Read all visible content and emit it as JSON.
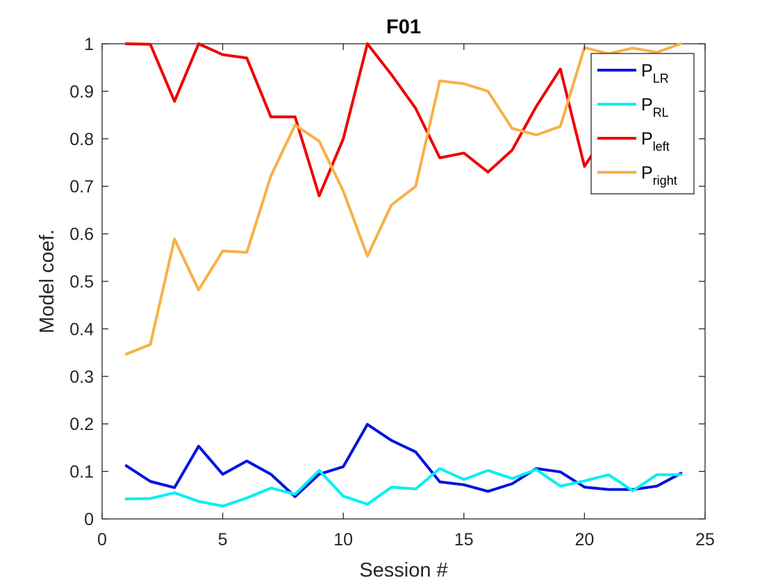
{
  "chart_data": {
    "type": "line",
    "title": "F01",
    "xlabel": "Session #",
    "ylabel": "Model coef.",
    "xlim": [
      0,
      25
    ],
    "ylim": [
      0,
      1
    ],
    "xticks": [
      0,
      5,
      10,
      15,
      20,
      25
    ],
    "yticks": [
      0,
      0.1,
      0.2,
      0.3,
      0.4,
      0.5,
      0.6,
      0.7,
      0.8,
      0.9,
      1
    ],
    "grid": false,
    "legend_position": "top-right",
    "x": [
      1,
      2,
      3,
      4,
      5,
      6,
      7,
      8,
      9,
      10,
      11,
      12,
      13,
      14,
      15,
      16,
      17,
      18,
      19,
      20,
      21,
      22,
      23,
      24
    ],
    "series": [
      {
        "name": "P",
        "subscript": "LR",
        "color": "#0014dc",
        "values": [
          0.112,
          0.079,
          0.066,
          0.153,
          0.094,
          0.122,
          0.094,
          0.047,
          0.094,
          0.11,
          0.199,
          0.165,
          0.141,
          0.078,
          0.072,
          0.058,
          0.074,
          0.106,
          0.099,
          0.067,
          0.062,
          0.062,
          0.069,
          0.096
        ]
      },
      {
        "name": "P",
        "subscript": "RL",
        "color": "#00f0f0",
        "values": [
          0.042,
          0.043,
          0.055,
          0.037,
          0.027,
          0.044,
          0.065,
          0.052,
          0.102,
          0.048,
          0.031,
          0.067,
          0.063,
          0.106,
          0.083,
          0.102,
          0.085,
          0.104,
          0.069,
          0.08,
          0.093,
          0.059,
          0.093,
          0.093
        ]
      },
      {
        "name": "P",
        "subscript": "left",
        "color": "#f00000",
        "values": [
          1.0,
          0.999,
          0.879,
          1.0,
          0.977,
          0.97,
          0.846,
          0.846,
          0.68,
          0.8,
          1.0,
          0.935,
          0.864,
          0.76,
          0.77,
          0.73,
          0.776,
          0.868,
          0.947,
          0.742,
          0.82,
          0.82,
          0.82,
          0.82
        ]
      },
      {
        "name": "P",
        "subscript": "right",
        "color": "#f8b048",
        "values": [
          0.347,
          0.367,
          0.589,
          0.482,
          0.564,
          0.561,
          0.722,
          0.829,
          0.795,
          0.69,
          0.553,
          0.661,
          0.7,
          0.922,
          0.916,
          0.9,
          0.822,
          0.808,
          0.826,
          0.992,
          0.979,
          0.991,
          0.982,
          1.0
        ]
      }
    ]
  }
}
